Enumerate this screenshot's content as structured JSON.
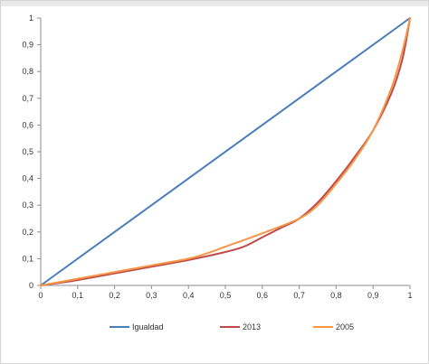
{
  "chart_data": {
    "type": "line",
    "title": "",
    "xlabel": "",
    "ylabel": "",
    "xlim": [
      0,
      1
    ],
    "ylim": [
      0,
      1
    ],
    "x_ticks": [
      "0",
      "0,1",
      "0,2",
      "0,3",
      "0,4",
      "0,5",
      "0,6",
      "0,7",
      "0,8",
      "0,9",
      "1"
    ],
    "y_ticks": [
      "0",
      "0,1",
      "0,2",
      "0,3",
      "0,4",
      "0,5",
      "0,6",
      "0,7",
      "0,8",
      "0,9",
      "1"
    ],
    "grid": false,
    "legend_position": "bottom",
    "series": [
      {
        "name": "Igualdad",
        "color": "#4a7ebb",
        "points": [
          [
            0,
            0
          ],
          [
            1,
            1
          ]
        ]
      },
      {
        "name": "2013",
        "color": "#be4b48",
        "points": [
          [
            0,
            0
          ],
          [
            0.1,
            0.02
          ],
          [
            0.2,
            0.045
          ],
          [
            0.3,
            0.07
          ],
          [
            0.4,
            0.095
          ],
          [
            0.5,
            0.125
          ],
          [
            0.55,
            0.145
          ],
          [
            0.6,
            0.18
          ],
          [
            0.65,
            0.215
          ],
          [
            0.7,
            0.25
          ],
          [
            0.75,
            0.31
          ],
          [
            0.8,
            0.39
          ],
          [
            0.85,
            0.48
          ],
          [
            0.9,
            0.58
          ],
          [
            0.95,
            0.72
          ],
          [
            0.98,
            0.85
          ],
          [
            1.0,
            1.0
          ]
        ]
      },
      {
        "name": "2005",
        "color": "#f79646",
        "points": [
          [
            0,
            0
          ],
          [
            0.1,
            0.025
          ],
          [
            0.2,
            0.05
          ],
          [
            0.3,
            0.075
          ],
          [
            0.4,
            0.1
          ],
          [
            0.45,
            0.12
          ],
          [
            0.5,
            0.145
          ],
          [
            0.6,
            0.195
          ],
          [
            0.7,
            0.25
          ],
          [
            0.75,
            0.3
          ],
          [
            0.8,
            0.38
          ],
          [
            0.85,
            0.47
          ],
          [
            0.9,
            0.58
          ],
          [
            0.95,
            0.74
          ],
          [
            0.98,
            0.88
          ],
          [
            1.0,
            1.0
          ]
        ]
      }
    ]
  }
}
